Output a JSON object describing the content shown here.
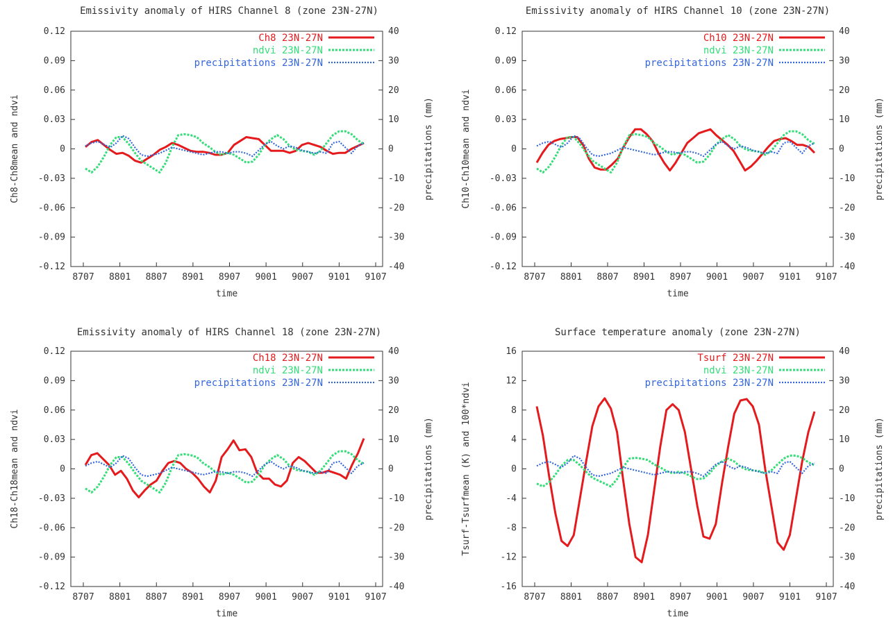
{
  "colors": {
    "channel": "#e41a1c",
    "ndvi": "#33dd77",
    "precip": "#3366dd",
    "axis": "#333333"
  },
  "chart_data": [
    {
      "type": "line",
      "title": "Emissivity anomaly of HIRS Channel 8 (zone 23N-27N)",
      "xlabel": "time",
      "ylabel": "Ch8-Ch8mean and ndvi",
      "y2label": "precipitations (mm)",
      "xlim": [
        8707,
        9107
      ],
      "ylim": [
        -0.12,
        0.12
      ],
      "y2lim": [
        -40,
        40
      ],
      "xticks": [
        "8707",
        "8801",
        "8807",
        "8901",
        "8907",
        "9001",
        "9007",
        "9101",
        "9107"
      ],
      "yticks": [
        "0.12",
        "0.09",
        "0.06",
        "0.03",
        "0",
        "-0.03",
        "-0.06",
        "-0.09",
        "-0.12"
      ],
      "y2ticks": [
        "40",
        "30",
        "20",
        "10",
        "0",
        "-10",
        "-20",
        "-30",
        "-40"
      ],
      "legend_position": "top-right",
      "series": [
        {
          "name": "Ch8 23N-27N",
          "role": "channel",
          "axis": "left",
          "style": "solid",
          "values": [
            0.002,
            0.007,
            0.009,
            0.004,
            -0.001,
            -0.005,
            -0.004,
            -0.007,
            -0.012,
            -0.014,
            -0.01,
            -0.006,
            -0.001,
            0.002,
            0.006,
            0.004,
            0.001,
            -0.002,
            -0.003,
            -0.003,
            -0.004,
            -0.006,
            -0.006,
            -0.004,
            0.004,
            0.008,
            0.012,
            0.011,
            0.01,
            0.004,
            -0.002,
            -0.002,
            -0.002,
            -0.004,
            -0.002,
            0.004,
            0.006,
            0.004,
            0.002,
            -0.002,
            -0.005,
            -0.004,
            -0.004,
            0,
            0.003,
            0.006
          ]
        },
        {
          "name": "ndvi 23N-27N",
          "role": "ndvi",
          "axis": "left",
          "style": "dashed",
          "values": [
            -0.02,
            -0.024,
            -0.018,
            -0.008,
            0.004,
            0.012,
            0.012,
            0.005,
            -0.004,
            -0.012,
            -0.016,
            -0.02,
            -0.024,
            -0.014,
            0.002,
            0.014,
            0.015,
            0.014,
            0.012,
            0.006,
            0.002,
            -0.003,
            -0.006,
            -0.004,
            -0.006,
            -0.01,
            -0.014,
            -0.013,
            -0.006,
            0.004,
            0.01,
            0.014,
            0.01,
            0.003,
            -0.001,
            -0.002,
            -0.003,
            -0.006,
            -0.002,
            0.006,
            0.014,
            0.018,
            0.018,
            0.015,
            0.009,
            0.005
          ]
        },
        {
          "name": "precipitations 23N-27N",
          "role": "precip",
          "axis": "right",
          "style": "dotted",
          "values": [
            1,
            2,
            2.5,
            1.5,
            0.5,
            2,
            4.5,
            3.5,
            0.5,
            -2,
            -2.5,
            -2,
            -1.5,
            -0.5,
            0.5,
            0,
            -0.5,
            -1,
            -1.5,
            -2,
            -1.5,
            -1,
            -1,
            -1.5,
            -1,
            -1,
            -1.5,
            -2.5,
            -0.5,
            1.5,
            2.5,
            1,
            0,
            1,
            0.5,
            -0.5,
            -1,
            -1.5,
            -1,
            -1.5,
            2,
            2.5,
            0.5,
            -1.5,
            1,
            2
          ]
        }
      ]
    },
    {
      "type": "line",
      "title": "Emissivity anomaly of HIRS Channel 10 (zone 23N-27N)",
      "xlabel": "time",
      "ylabel": "Ch10-Ch10mean and ndvi",
      "y2label": "precipitations (mm)",
      "xlim": [
        8707,
        9107
      ],
      "ylim": [
        -0.12,
        0.12
      ],
      "y2lim": [
        -40,
        40
      ],
      "xticks": [
        "8707",
        "8801",
        "8807",
        "8901",
        "8907",
        "9001",
        "9007",
        "9101",
        "9107"
      ],
      "yticks": [
        "0.12",
        "0.09",
        "0.06",
        "0.03",
        "0",
        "-0.03",
        "-0.06",
        "-0.09",
        "-0.12"
      ],
      "y2ticks": [
        "40",
        "30",
        "20",
        "10",
        "0",
        "-10",
        "-20",
        "-30",
        "-40"
      ],
      "legend_position": "top-right",
      "series": [
        {
          "name": "Ch10 23N-27N",
          "role": "channel",
          "axis": "left",
          "style": "solid",
          "values": [
            -0.014,
            -0.004,
            0.004,
            0.008,
            0.01,
            0.011,
            0.012,
            0.012,
            0.004,
            -0.01,
            -0.019,
            -0.021,
            -0.021,
            -0.016,
            -0.01,
            0.002,
            0.012,
            0.02,
            0.02,
            0.015,
            0.008,
            -0.004,
            -0.014,
            -0.022,
            -0.014,
            -0.004,
            0.006,
            0.011,
            0.016,
            0.018,
            0.02,
            0.014,
            0.009,
            0.004,
            -0.002,
            -0.012,
            -0.022,
            -0.018,
            -0.012,
            -0.005,
            0.002,
            0.008,
            0.01,
            0.011,
            0.008,
            0.004,
            0.004,
            0.002,
            -0.004
          ]
        },
        {
          "name": "ndvi 23N-27N",
          "role": "ndvi",
          "axis": "left",
          "style": "dashed",
          "values": [
            -0.02,
            -0.024,
            -0.018,
            -0.008,
            0.004,
            0.012,
            0.012,
            0.005,
            -0.004,
            -0.012,
            -0.016,
            -0.02,
            -0.024,
            -0.014,
            0.002,
            0.014,
            0.015,
            0.014,
            0.012,
            0.006,
            0.002,
            -0.003,
            -0.006,
            -0.004,
            -0.006,
            -0.01,
            -0.014,
            -0.013,
            -0.006,
            0.004,
            0.01,
            0.014,
            0.01,
            0.003,
            -0.001,
            -0.002,
            -0.003,
            -0.006,
            -0.002,
            0.006,
            0.014,
            0.018,
            0.018,
            0.015,
            0.009,
            0.005
          ]
        },
        {
          "name": "precipitations 23N-27N",
          "role": "precip",
          "axis": "right",
          "style": "dotted",
          "values": [
            1,
            2,
            2.5,
            1.5,
            0.5,
            2,
            4.5,
            3.5,
            0.5,
            -2,
            -2.5,
            -2,
            -1.5,
            -0.5,
            0.5,
            0,
            -0.5,
            -1,
            -1.5,
            -2,
            -1.5,
            -1,
            -1,
            -1.5,
            -1,
            -1,
            -1.5,
            -2.5,
            -0.5,
            1.5,
            2.5,
            1,
            0,
            1,
            0.5,
            -0.5,
            -1,
            -1.5,
            -1,
            -1.5,
            2,
            2.5,
            0.5,
            -1.5,
            1,
            2
          ]
        }
      ]
    },
    {
      "type": "line",
      "title": "Emissivity anomaly of HIRS Channel 18 (zone 23N-27N)",
      "xlabel": "time",
      "ylabel": "Ch18-Ch18mean and ndvi",
      "y2label": "precipitations (mm)",
      "xlim": [
        8707,
        9107
      ],
      "ylim": [
        -0.12,
        0.12
      ],
      "y2lim": [
        -40,
        40
      ],
      "xticks": [
        "8707",
        "8801",
        "8807",
        "8901",
        "8907",
        "9001",
        "9007",
        "9101",
        "9107"
      ],
      "yticks": [
        "0.12",
        "0.09",
        "0.06",
        "0.03",
        "0",
        "-0.03",
        "-0.06",
        "-0.09",
        "-0.12"
      ],
      "y2ticks": [
        "40",
        "30",
        "20",
        "10",
        "0",
        "-10",
        "-20",
        "-30",
        "-40"
      ],
      "legend_position": "top-right",
      "series": [
        {
          "name": "Ch18 23N-27N",
          "role": "channel",
          "axis": "left",
          "style": "solid",
          "values": [
            0.004,
            0.014,
            0.016,
            0.01,
            0.004,
            -0.006,
            -0.002,
            -0.01,
            -0.022,
            -0.029,
            -0.022,
            -0.016,
            -0.012,
            -0.002,
            0.006,
            0.008,
            0.006,
            0,
            -0.004,
            -0.01,
            -0.018,
            -0.024,
            -0.012,
            0.012,
            0.02,
            0.029,
            0.019,
            0.02,
            0.012,
            -0.004,
            -0.01,
            -0.01,
            -0.016,
            -0.018,
            -0.012,
            0.006,
            0.012,
            0.008,
            0.002,
            -0.004,
            -0.004,
            -0.002,
            -0.004,
            -0.006,
            -0.01,
            0.004,
            0.016,
            0.031
          ]
        },
        {
          "name": "ndvi 23N-27N",
          "role": "ndvi",
          "axis": "left",
          "style": "dashed",
          "values": [
            -0.02,
            -0.024,
            -0.018,
            -0.008,
            0.004,
            0.012,
            0.012,
            0.005,
            -0.004,
            -0.012,
            -0.016,
            -0.02,
            -0.024,
            -0.014,
            0.002,
            0.014,
            0.015,
            0.014,
            0.012,
            0.006,
            0.002,
            -0.003,
            -0.006,
            -0.004,
            -0.006,
            -0.01,
            -0.014,
            -0.013,
            -0.006,
            0.004,
            0.01,
            0.014,
            0.01,
            0.003,
            -0.001,
            -0.002,
            -0.003,
            -0.006,
            -0.002,
            0.006,
            0.014,
            0.018,
            0.018,
            0.015,
            0.009,
            0.005
          ]
        },
        {
          "name": "precipitations 23N-27N",
          "role": "precip",
          "axis": "right",
          "style": "dotted",
          "values": [
            1,
            2,
            2.5,
            1.5,
            0.5,
            2,
            4.5,
            3.5,
            0.5,
            -2,
            -2.5,
            -2,
            -1.5,
            -0.5,
            0.5,
            0,
            -0.5,
            -1,
            -1.5,
            -2,
            -1.5,
            -1,
            -1,
            -1.5,
            -1,
            -1,
            -1.5,
            -2.5,
            -0.5,
            1.5,
            2.5,
            1,
            0,
            1,
            0.5,
            -0.5,
            -1,
            -1.5,
            -1,
            -1.5,
            2,
            2.5,
            0.5,
            -1.5,
            1,
            2
          ]
        }
      ]
    },
    {
      "type": "line",
      "title": "Surface temperature anomaly (zone 23N-27N)",
      "xlabel": "time",
      "ylabel": "Tsurf-Tsurfmean (K) and 100*ndvi",
      "y2label": "precipitations (mm)",
      "xlim": [
        8707,
        9107
      ],
      "ylim": [
        -16,
        16
      ],
      "y2lim": [
        -40,
        40
      ],
      "xticks": [
        "8707",
        "8801",
        "8807",
        "8901",
        "8907",
        "9001",
        "9007",
        "9101",
        "9107"
      ],
      "yticks": [
        "16",
        "12",
        "8",
        "4",
        "0",
        "-4",
        "-8",
        "-12",
        "-16"
      ],
      "y2ticks": [
        "40",
        "30",
        "20",
        "10",
        "0",
        "-10",
        "-20",
        "-30",
        "-40"
      ],
      "legend_position": "top-right",
      "series": [
        {
          "name": "Tsurf 23N-27N",
          "role": "channel",
          "axis": "left",
          "style": "solid",
          "values": [
            8.5,
            4.5,
            -1,
            -6,
            -9.8,
            -10.5,
            -9,
            -4,
            1,
            5.8,
            8.5,
            9.6,
            8.2,
            5,
            -1.5,
            -7.5,
            -12,
            -12.7,
            -9,
            -3,
            3,
            8,
            8.8,
            8,
            5,
            0,
            -5,
            -9.2,
            -9.5,
            -7.5,
            -2,
            3,
            7.5,
            9.3,
            9.5,
            8.5,
            6,
            0,
            -5,
            -10,
            -11,
            -9,
            -4,
            1,
            5,
            7.8
          ]
        },
        {
          "name": "ndvi 23N-27N",
          "role": "ndvi",
          "axis": "left",
          "style": "dashed",
          "values": [
            -2,
            -2.4,
            -1.8,
            -0.8,
            0.4,
            1.2,
            1.2,
            0.5,
            -0.4,
            -1.2,
            -1.6,
            -2,
            -2.4,
            -1.4,
            0.2,
            1.4,
            1.5,
            1.4,
            1.2,
            0.6,
            0.2,
            -0.3,
            -0.6,
            -0.4,
            -0.6,
            -1,
            -1.4,
            -1.3,
            -0.6,
            0.4,
            1,
            1.4,
            1,
            0.3,
            -0.1,
            -0.2,
            -0.3,
            -0.6,
            -0.2,
            0.6,
            1.4,
            1.8,
            1.8,
            1.5,
            0.9,
            0.5
          ]
        },
        {
          "name": "precipitations 23N-27N",
          "role": "precip",
          "axis": "right",
          "style": "dotted",
          "values": [
            1,
            2,
            2.5,
            1.5,
            0.5,
            2,
            4.5,
            3.5,
            0.5,
            -2,
            -2.5,
            -2,
            -1.5,
            -0.5,
            0.5,
            0,
            -0.5,
            -1,
            -1.5,
            -2,
            -1.5,
            -1,
            -1,
            -1.5,
            -1,
            -1,
            -1.5,
            -2.5,
            -0.5,
            1.5,
            2.5,
            1,
            0,
            1,
            0.5,
            -0.5,
            -1,
            -1.5,
            -1,
            -1.5,
            2,
            2.5,
            0.5,
            -1.5,
            1,
            2
          ]
        }
      ]
    }
  ]
}
